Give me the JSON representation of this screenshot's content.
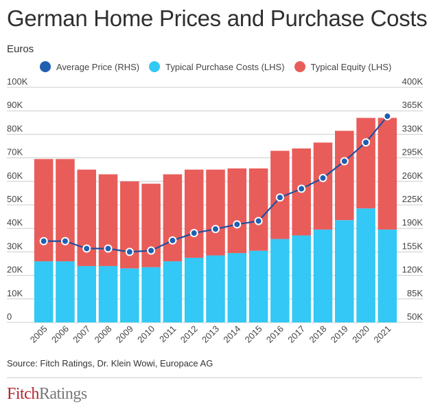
{
  "title": "German Home Prices and Purchase Costs",
  "subtitle": "Euros",
  "source": "Source: Fitch Ratings, Dr. Klein Wowi, Europace AG",
  "logo": {
    "part1": "Fitch",
    "part2": "Ratings"
  },
  "colors": {
    "equity": "#e85d5a",
    "purchase_costs": "#33c8f5",
    "price": "#1f5fb0",
    "price_line": "#1f4fa0",
    "grid": "#cccccc"
  },
  "chart_data": {
    "type": "bar",
    "stacked": true,
    "categories": [
      "2005",
      "2006",
      "2007",
      "2008",
      "2009",
      "2010",
      "2011",
      "2012",
      "2013",
      "2014",
      "2015",
      "2016",
      "2017",
      "2018",
      "2019",
      "2020",
      "2021"
    ],
    "series": [
      {
        "name": "Typical Purchase Costs (LHS)",
        "axis": "left",
        "kind": "bar",
        "values": [
          26000,
          26000,
          24000,
          24000,
          23000,
          23500,
          26000,
          27500,
          28500,
          29500,
          30500,
          35500,
          37000,
          39500,
          43500,
          48500,
          39500
        ]
      },
      {
        "name": "Typical Equity (LHS)",
        "axis": "left",
        "kind": "bar",
        "values": [
          43500,
          43500,
          41000,
          39000,
          37000,
          35500,
          37000,
          37500,
          36500,
          36000,
          35000,
          37500,
          37000,
          37000,
          38000,
          38500,
          47500
        ]
      },
      {
        "name": "Average Price (RHS)",
        "axis": "right",
        "kind": "line",
        "values": [
          171000,
          171000,
          160000,
          160000,
          155000,
          157000,
          172000,
          183000,
          189000,
          196000,
          201000,
          236000,
          249000,
          265000,
          290000,
          318000,
          357000
        ]
      }
    ],
    "legend": [
      "Average Price (RHS)",
      "Typical Purchase Costs (LHS)",
      "Typical Equity (LHS)"
    ],
    "legend_position": "top",
    "y_left": {
      "lim": [
        0,
        100000
      ],
      "ticks": [
        0,
        10000,
        20000,
        30000,
        40000,
        50000,
        60000,
        70000,
        80000,
        90000,
        100000
      ],
      "tick_labels": [
        "0",
        "10K",
        "20K",
        "30K",
        "40K",
        "50K",
        "60K",
        "70K",
        "80K",
        "90K",
        "100K"
      ]
    },
    "y_right": {
      "lim": [
        50000,
        400000
      ],
      "ticks": [
        50000,
        85000,
        120000,
        155000,
        190000,
        225000,
        260000,
        295000,
        330000,
        365000,
        400000
      ],
      "tick_labels": [
        "50K",
        "85K",
        "120K",
        "155K",
        "190K",
        "225K",
        "260K",
        "295K",
        "330K",
        "365K",
        "400K"
      ]
    },
    "grid": true
  }
}
